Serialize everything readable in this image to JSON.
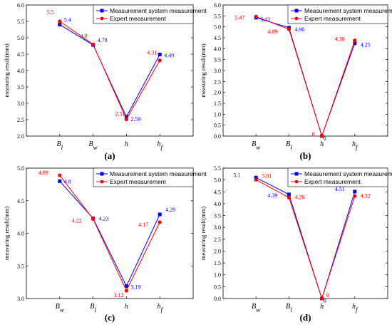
{
  "colors": {
    "measurement_system": "#0000ff",
    "expert": "#ff0000"
  },
  "chart_data": [
    {
      "type": "line",
      "panel": "(a)",
      "categories": [
        {
          "base": "B",
          "sub": "l"
        },
        {
          "base": "B",
          "sub": "w"
        },
        {
          "base": "h",
          "sub": ""
        },
        {
          "base": "h",
          "sub": "f"
        }
      ],
      "ylabel": "measuring result(mm)",
      "ylim": [
        2.0,
        6.0
      ],
      "yticks": [
        "2.0",
        "2.5",
        "3.0",
        "3.5",
        "4.0",
        "4.5",
        "5.0",
        "5.5",
        "6.0"
      ],
      "legend_position": "top-right",
      "series": [
        {
          "name": "Measurement system measurement",
          "values": [
            5.4,
            4.78,
            2.59,
            4.49
          ],
          "labels": [
            "5.4",
            "4.78",
            "2.59",
            "4.49"
          ]
        },
        {
          "name": "Expert measurement",
          "values": [
            5.5,
            4.8,
            2.51,
            4.31
          ],
          "labels": [
            "5.5",
            "4.8",
            "2.51",
            "4.31"
          ]
        }
      ]
    },
    {
      "type": "line",
      "panel": "(b)",
      "categories": [
        {
          "base": "B",
          "sub": "w"
        },
        {
          "base": "B",
          "sub": "l"
        },
        {
          "base": "h",
          "sub": ""
        },
        {
          "base": "h",
          "sub": "f"
        }
      ],
      "ylabel": "measuring result(mm)",
      "ylim": [
        0.0,
        6.0
      ],
      "yticks": [
        "0.0",
        "0.5",
        "1.0",
        "1.5",
        "2.0",
        "2.5",
        "3.0",
        "3.5",
        "4.0",
        "4.5",
        "5.0",
        "5.5",
        "6.0"
      ],
      "legend_position": "top-right",
      "series": [
        {
          "name": "Measurement system measurement",
          "values": [
            5.42,
            4.96,
            0,
            4.25
          ],
          "labels": [
            "5.42",
            "4.96",
            "0",
            "4.25"
          ]
        },
        {
          "name": "Expert measurement",
          "values": [
            5.47,
            4.89,
            0,
            4.38
          ],
          "labels": [
            "5.47",
            "4.89",
            "0",
            "4.38"
          ]
        }
      ]
    },
    {
      "type": "line",
      "panel": "(c)",
      "categories": [
        {
          "base": "B",
          "sub": "w"
        },
        {
          "base": "B",
          "sub": "l"
        },
        {
          "base": "h",
          "sub": ""
        },
        {
          "base": "h",
          "sub": "f"
        }
      ],
      "ylabel": "measuring result(mm)",
      "ylim": [
        3.0,
        5.0
      ],
      "yticks": [
        "3.0",
        "3.5",
        "4.0",
        "4.5",
        "5.0"
      ],
      "legend_position": "top-right",
      "series": [
        {
          "name": "Measurement system measurement",
          "values": [
            4.8,
            4.23,
            3.19,
            4.29
          ],
          "labels": [
            "4.8",
            "4.23",
            "3.19",
            "4.29"
          ]
        },
        {
          "name": "Expert measurement",
          "values": [
            4.89,
            4.22,
            3.12,
            4.17
          ],
          "labels": [
            "4.89",
            "4.22",
            "3.12",
            "4.17"
          ]
        }
      ]
    },
    {
      "type": "line",
      "panel": "(d)",
      "categories": [
        {
          "base": "B",
          "sub": "w"
        },
        {
          "base": "B",
          "sub": "l"
        },
        {
          "base": "h",
          "sub": ""
        },
        {
          "base": "h",
          "sub": "f"
        }
      ],
      "ylabel": "measuring result(mm)",
      "ylim": [
        0.0,
        5.5
      ],
      "yticks": [
        "0.0",
        "0.5",
        "1.0",
        "1.5",
        "2.0",
        "2.5",
        "3.0",
        "3.5",
        "4.0",
        "4.5",
        "5.0",
        "5.5"
      ],
      "legend_position": "top-right",
      "series": [
        {
          "name": "Measurement system measurement",
          "values": [
            5.1,
            4.39,
            0,
            4.51
          ],
          "labels": [
            "5.1",
            "4.39",
            "0",
            "4.51"
          ]
        },
        {
          "name": "Expert measurement",
          "values": [
            5.01,
            4.26,
            0,
            4.32
          ],
          "labels": [
            "5.01",
            "4.26",
            "0",
            "4.32"
          ]
        }
      ]
    }
  ]
}
